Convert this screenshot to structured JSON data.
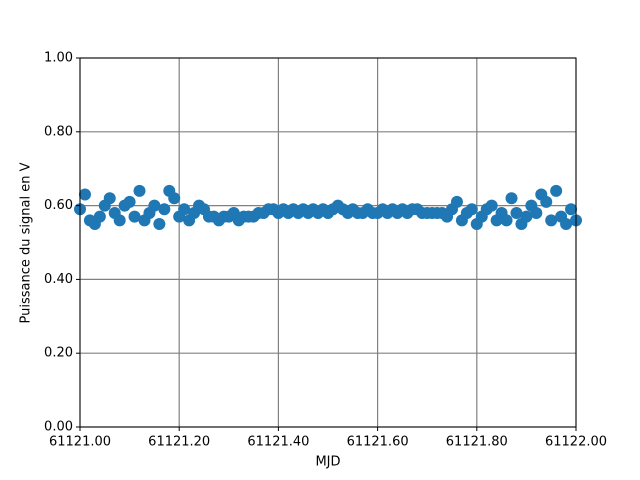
{
  "chart_data": {
    "type": "scatter",
    "x_label": "MJD",
    "y_label": "Puissance du signal en V",
    "grid": true,
    "xlim": [
      61121,
      61122
    ],
    "ylim": [
      0,
      1
    ],
    "xticks": [
      {
        "value": 61121,
        "label": "61121.00"
      },
      {
        "value": 61121.2,
        "label": "61121.20"
      },
      {
        "value": 61121.4,
        "label": "61121.40"
      },
      {
        "value": 61121.6,
        "label": "61121.60"
      },
      {
        "value": 61121.8,
        "label": "61121.80"
      },
      {
        "value": 61122,
        "label": "61122.00"
      }
    ],
    "yticks": [
      {
        "value": 0,
        "label": "0.00"
      },
      {
        "value": 0.2,
        "label": "0.20"
      },
      {
        "value": 0.4,
        "label": "0.40"
      },
      {
        "value": 0.6,
        "label": "0.60"
      },
      {
        "value": 0.8,
        "label": "0.80"
      },
      {
        "value": 1,
        "label": "1.00"
      }
    ],
    "series": [
      {
        "color": "#1f77b4",
        "x": [
          61121.0,
          61121.01,
          61121.02,
          61121.03,
          61121.04,
          61121.05,
          61121.06,
          61121.07,
          61121.08,
          61121.09,
          61121.1,
          61121.11,
          61121.12,
          61121.13,
          61121.14,
          61121.15,
          61121.16,
          61121.17,
          61121.18,
          61121.19,
          61121.2,
          61121.21,
          61121.22,
          61121.23,
          61121.24,
          61121.25,
          61121.26,
          61121.27,
          61121.28,
          61121.29,
          61121.3,
          61121.31,
          61121.32,
          61121.33,
          61121.34,
          61121.35,
          61121.36,
          61121.37,
          61121.38,
          61121.39,
          61121.4,
          61121.41,
          61121.42,
          61121.43,
          61121.44,
          61121.45,
          61121.46,
          61121.47,
          61121.48,
          61121.49,
          61121.5,
          61121.51,
          61121.52,
          61121.53,
          61121.54,
          61121.55,
          61121.56,
          61121.57,
          61121.58,
          61121.59,
          61121.6,
          61121.61,
          61121.62,
          61121.63,
          61121.64,
          61121.65,
          61121.66,
          61121.67,
          61121.68,
          61121.69,
          61121.7,
          61121.71,
          61121.72,
          61121.73,
          61121.74,
          61121.75,
          61121.76,
          61121.77,
          61121.78,
          61121.79,
          61121.8,
          61121.81,
          61121.82,
          61121.83,
          61121.84,
          61121.85,
          61121.86,
          61121.87,
          61121.88,
          61121.89,
          61121.9,
          61121.91,
          61121.92,
          61121.93,
          61121.94,
          61121.95,
          61121.96,
          61121.97,
          61121.98,
          61121.99,
          61122.0
        ],
        "values": [
          0.59,
          0.63,
          0.56,
          0.55,
          0.57,
          0.6,
          0.62,
          0.58,
          0.56,
          0.6,
          0.61,
          0.57,
          0.64,
          0.56,
          0.58,
          0.6,
          0.55,
          0.59,
          0.64,
          0.62,
          0.57,
          0.59,
          0.56,
          0.58,
          0.6,
          0.59,
          0.57,
          0.57,
          0.56,
          0.57,
          0.57,
          0.58,
          0.56,
          0.57,
          0.57,
          0.57,
          0.58,
          0.58,
          0.59,
          0.59,
          0.58,
          0.59,
          0.58,
          0.59,
          0.58,
          0.59,
          0.58,
          0.59,
          0.58,
          0.59,
          0.58,
          0.59,
          0.6,
          0.59,
          0.58,
          0.59,
          0.58,
          0.58,
          0.59,
          0.58,
          0.58,
          0.59,
          0.58,
          0.59,
          0.58,
          0.59,
          0.58,
          0.59,
          0.59,
          0.58,
          0.58,
          0.58,
          0.58,
          0.58,
          0.57,
          0.59,
          0.61,
          0.56,
          0.58,
          0.59,
          0.55,
          0.57,
          0.59,
          0.6,
          0.56,
          0.58,
          0.56,
          0.62,
          0.58,
          0.55,
          0.57,
          0.6,
          0.58,
          0.63,
          0.61,
          0.56,
          0.64,
          0.57,
          0.55,
          0.59,
          0.56
        ]
      }
    ]
  }
}
